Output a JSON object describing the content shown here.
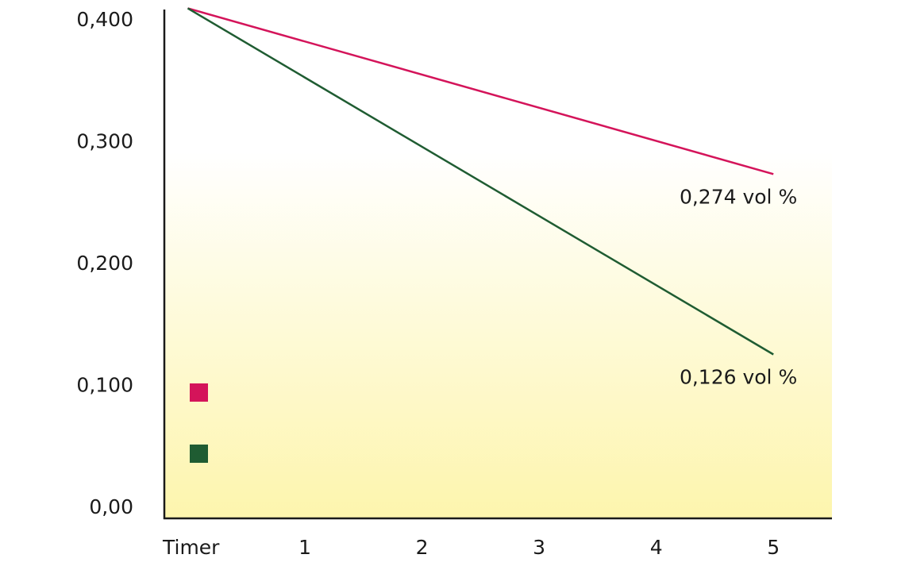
{
  "chart_data": {
    "type": "line",
    "x_label": "Timer",
    "x": [
      0,
      5
    ],
    "xlim": [
      -0.2,
      5.5
    ],
    "xticks": [
      1,
      2,
      3,
      4,
      5
    ],
    "ylim": [
      -0.0085,
      0.409
    ],
    "yticks": [
      {
        "value": 0,
        "label": "0,00"
      },
      {
        "value": 0.1,
        "label": "0,100"
      },
      {
        "value": 0.2,
        "label": "0,200"
      },
      {
        "value": 0.3,
        "label": "0,300"
      },
      {
        "value": 0.4,
        "label": "0,400"
      }
    ],
    "series": [
      {
        "color": "#d4145a",
        "values": [
          0.41,
          0.274
        ],
        "value_labels": [
          null,
          "0,274 vol %"
        ]
      },
      {
        "color": "#1f5c32",
        "values": [
          0.41,
          0.126
        ],
        "value_labels": [
          null,
          "0,126 vol %"
        ]
      }
    ]
  }
}
